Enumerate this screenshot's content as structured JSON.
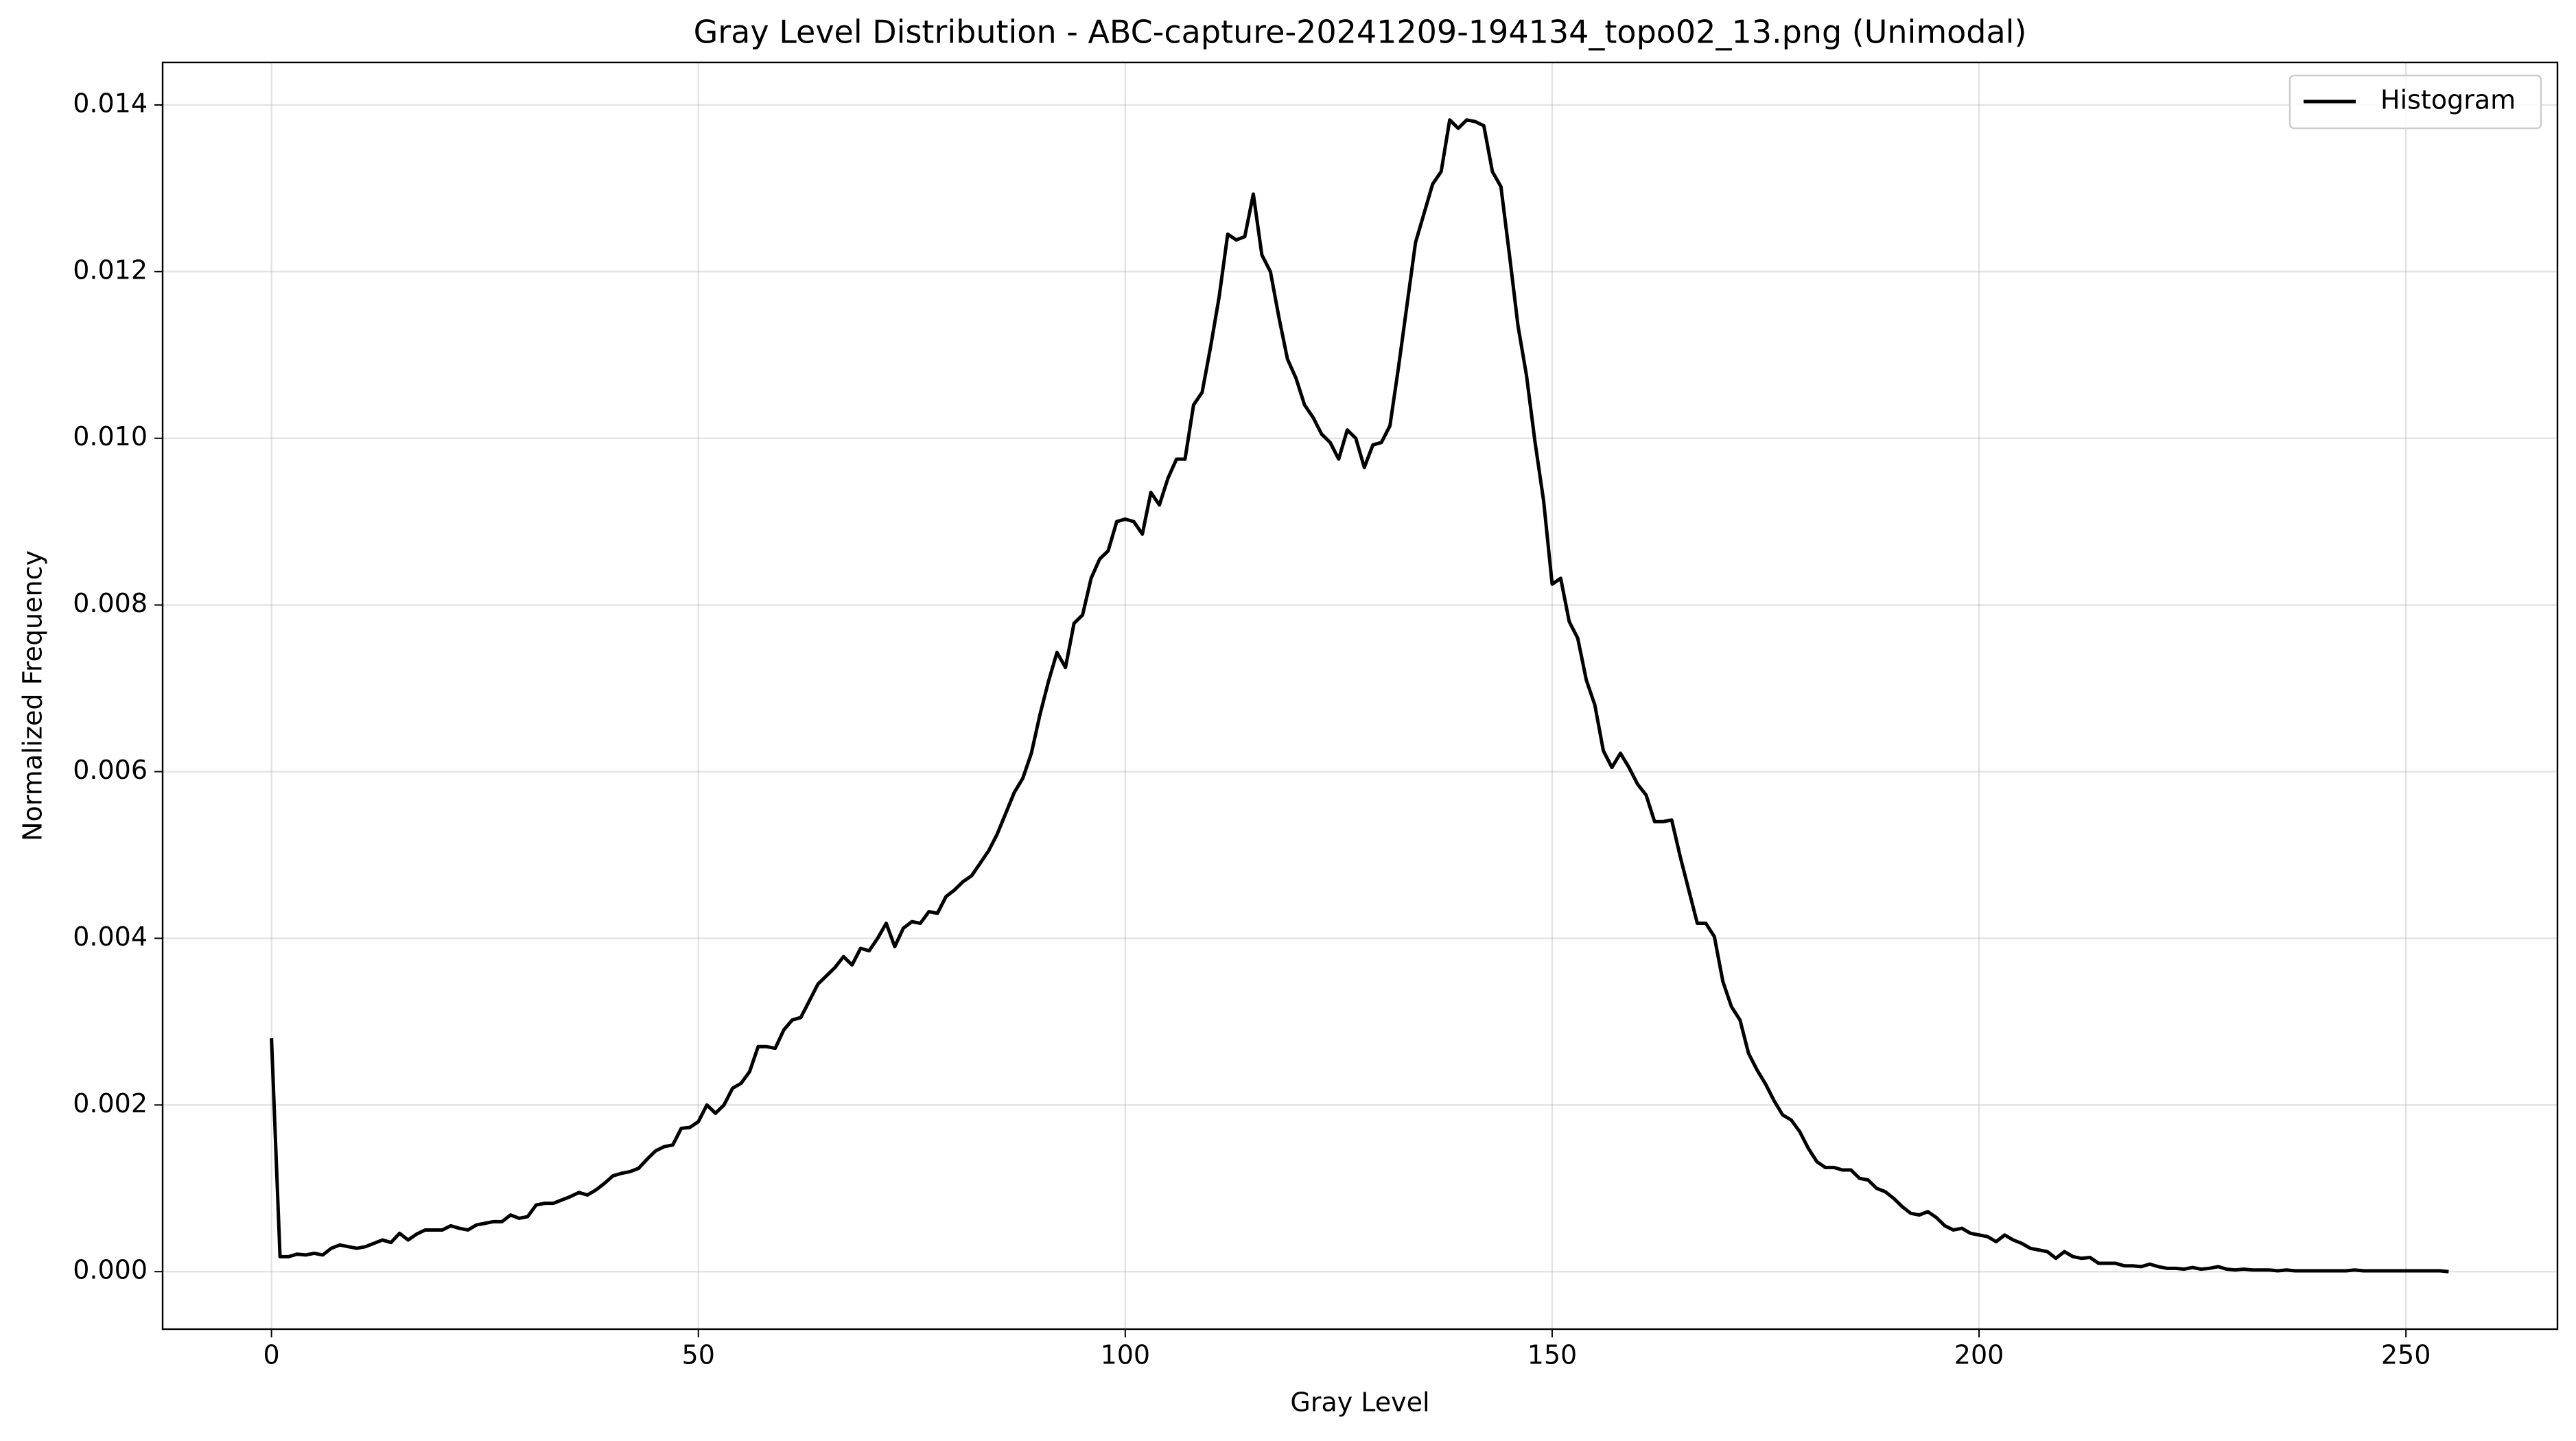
{
  "chart_data": {
    "type": "line",
    "title": "Gray Level Distribution - ABC-capture-20241209-194134_topo02_13.png (Unimodal)",
    "x_label": "Gray Level",
    "y_label": "Normalized Frequency",
    "x": [
      0,
      1,
      2,
      3,
      4,
      5,
      6,
      7,
      8,
      9,
      10,
      11,
      12,
      13,
      14,
      15,
      16,
      17,
      18,
      19,
      20,
      21,
      22,
      23,
      24,
      25,
      26,
      27,
      28,
      29,
      30,
      31,
      32,
      33,
      34,
      35,
      36,
      37,
      38,
      39,
      40,
      41,
      42,
      43,
      44,
      45,
      46,
      47,
      48,
      49,
      50,
      51,
      52,
      53,
      54,
      55,
      56,
      57,
      58,
      59,
      60,
      61,
      62,
      63,
      64,
      65,
      66,
      67,
      68,
      69,
      70,
      71,
      72,
      73,
      74,
      75,
      76,
      77,
      78,
      79,
      80,
      81,
      82,
      83,
      84,
      85,
      86,
      87,
      88,
      89,
      90,
      91,
      92,
      93,
      94,
      95,
      96,
      97,
      98,
      99,
      100,
      101,
      102,
      103,
      104,
      105,
      106,
      107,
      108,
      109,
      110,
      111,
      112,
      113,
      114,
      115,
      116,
      117,
      118,
      119,
      120,
      121,
      122,
      123,
      124,
      125,
      126,
      127,
      128,
      129,
      130,
      131,
      132,
      133,
      134,
      135,
      136,
      137,
      138,
      139,
      140,
      141,
      142,
      143,
      144,
      145,
      146,
      147,
      148,
      149,
      150,
      151,
      152,
      153,
      154,
      155,
      156,
      157,
      158,
      159,
      160,
      161,
      162,
      163,
      164,
      165,
      166,
      167,
      168,
      169,
      170,
      171,
      172,
      173,
      174,
      175,
      176,
      177,
      178,
      179,
      180,
      181,
      182,
      183,
      184,
      185,
      186,
      187,
      188,
      189,
      190,
      191,
      192,
      193,
      194,
      195,
      196,
      197,
      198,
      199,
      200,
      201,
      202,
      203,
      204,
      205,
      206,
      207,
      208,
      209,
      210,
      211,
      212,
      213,
      214,
      215,
      216,
      217,
      218,
      219,
      220,
      221,
      222,
      223,
      224,
      225,
      226,
      227,
      228,
      229,
      230,
      231,
      232,
      233,
      234,
      235,
      236,
      237,
      238,
      239,
      240,
      241,
      242,
      243,
      244,
      245,
      246,
      247,
      248,
      249,
      250,
      251,
      252,
      253,
      254,
      255
    ],
    "series": [
      {
        "name": "Histogram",
        "color": "#000000",
        "values": [
          0.0028,
          0.00018,
          0.00018,
          0.00021,
          0.0002,
          0.00022,
          0.0002,
          0.00028,
          0.00032,
          0.0003,
          0.00028,
          0.0003,
          0.00034,
          0.00038,
          0.00035,
          0.00046,
          0.00038,
          0.00045,
          0.0005,
          0.0005,
          0.0005,
          0.00055,
          0.00052,
          0.0005,
          0.00056,
          0.00058,
          0.0006,
          0.0006,
          0.00068,
          0.00064,
          0.00066,
          0.0008,
          0.00082,
          0.00082,
          0.00086,
          0.0009,
          0.00095,
          0.00092,
          0.00098,
          0.00106,
          0.00115,
          0.00118,
          0.0012,
          0.00124,
          0.00135,
          0.00145,
          0.0015,
          0.00152,
          0.00172,
          0.00173,
          0.0018,
          0.002,
          0.0019,
          0.002,
          0.0022,
          0.00226,
          0.0024,
          0.0027,
          0.0027,
          0.00268,
          0.0029,
          0.00302,
          0.00305,
          0.00325,
          0.00345,
          0.00355,
          0.00365,
          0.00378,
          0.00368,
          0.00388,
          0.00385,
          0.004,
          0.00418,
          0.0039,
          0.00412,
          0.0042,
          0.00418,
          0.00432,
          0.0043,
          0.0045,
          0.00458,
          0.00468,
          0.00475,
          0.0049,
          0.00505,
          0.00525,
          0.0055,
          0.00575,
          0.00592,
          0.00622,
          0.00668,
          0.00708,
          0.00743,
          0.00725,
          0.00778,
          0.00788,
          0.00832,
          0.00855,
          0.00865,
          0.009,
          0.00903,
          0.009,
          0.00885,
          0.00935,
          0.0092,
          0.00952,
          0.00975,
          0.00975,
          0.0104,
          0.01055,
          0.0111,
          0.0117,
          0.01245,
          0.01238,
          0.01242,
          0.01293,
          0.0122,
          0.012,
          0.01145,
          0.01095,
          0.01072,
          0.0104,
          0.01025,
          0.01005,
          0.00995,
          0.00975,
          0.0101,
          0.01,
          0.00965,
          0.00992,
          0.00995,
          0.01015,
          0.01085,
          0.0116,
          0.01235,
          0.0127,
          0.01305,
          0.0132,
          0.01382,
          0.01372,
          0.01382,
          0.0138,
          0.01375,
          0.0132,
          0.01302,
          0.0122,
          0.01135,
          0.01075,
          0.00995,
          0.00925,
          0.00825,
          0.00832,
          0.0078,
          0.0076,
          0.0071,
          0.0068,
          0.00625,
          0.00605,
          0.00622,
          0.00605,
          0.00585,
          0.00572,
          0.0054,
          0.0054,
          0.00542,
          0.00498,
          0.00458,
          0.00418,
          0.00418,
          0.00402,
          0.00348,
          0.00318,
          0.00302,
          0.00262,
          0.00242,
          0.00225,
          0.00205,
          0.00188,
          0.00182,
          0.00168,
          0.00148,
          0.00132,
          0.00125,
          0.00125,
          0.00122,
          0.00122,
          0.00112,
          0.0011,
          0.001,
          0.00096,
          0.00088,
          0.00078,
          0.0007,
          0.00068,
          0.00072,
          0.00065,
          0.00055,
          0.0005,
          0.00052,
          0.00046,
          0.00044,
          0.00042,
          0.00036,
          0.00044,
          0.00038,
          0.00034,
          0.00028,
          0.00026,
          0.00024,
          0.00016,
          0.00024,
          0.00018,
          0.00016,
          0.00017,
          0.0001,
          0.0001,
          0.0001,
          7e-05,
          7e-05,
          6e-05,
          9e-05,
          6e-05,
          4e-05,
          4e-05,
          3e-05,
          5e-05,
          3e-05,
          4e-05,
          6e-05,
          3e-05,
          2e-05,
          3e-05,
          2e-05,
          2e-05,
          2e-05,
          1e-05,
          2e-05,
          1e-05,
          1e-05,
          1e-05,
          1e-05,
          1e-05,
          1e-05,
          1e-05,
          2e-05,
          1e-05,
          1e-05,
          1e-05,
          1e-05,
          1e-05,
          1e-05,
          1e-05,
          1e-05,
          1e-05,
          1e-05,
          0
        ]
      }
    ],
    "xlim": [
      -12.75,
      267.75
    ],
    "xticks": [
      0,
      50,
      100,
      150,
      200,
      250
    ],
    "ylim": [
      -0.00069,
      0.01451
    ],
    "yticks": [
      {
        "value": 0,
        "label": "0.000"
      },
      0.002,
      0.004,
      0.006,
      0.008,
      {
        "value": 0.01,
        "label": "0.010"
      },
      0.012,
      0.014
    ],
    "grid": true,
    "legend": "upper right"
  }
}
